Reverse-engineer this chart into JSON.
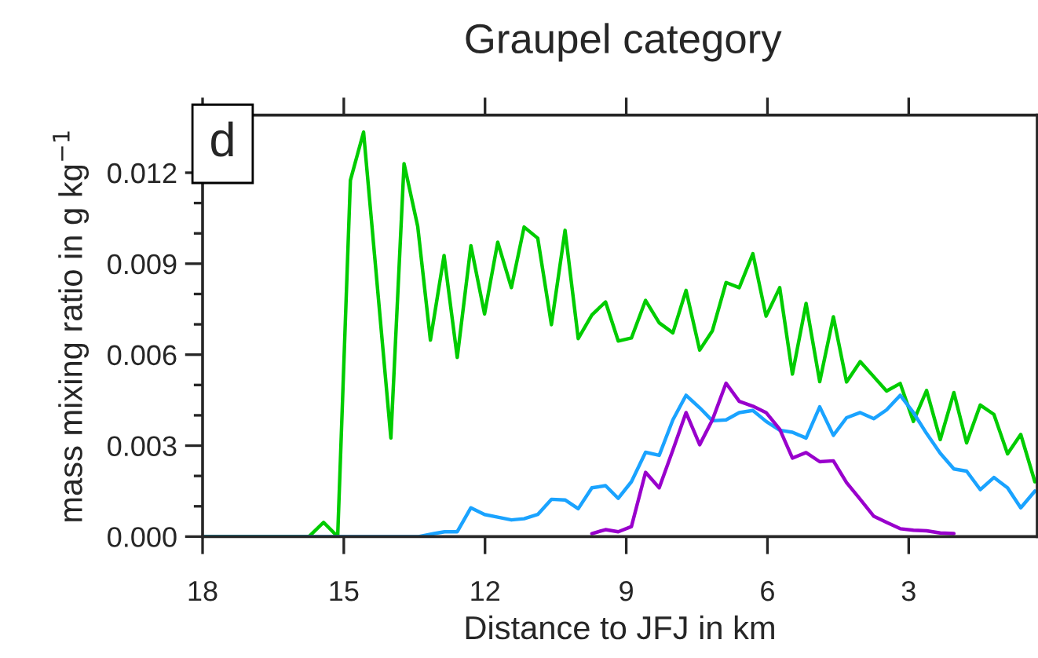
{
  "chart_data": {
    "type": "line",
    "title": "Graupel category",
    "xlabel": "Distance to JFJ in km",
    "ylabel": "mass mixing ratio in g kg$^{−1}$",
    "annotations": [
      "d"
    ],
    "xlim": [
      18,
      0.27
    ],
    "xticks": [
      18,
      15,
      12,
      9,
      6,
      3
    ],
    "ylim": [
      0,
      0.0139
    ],
    "yticks": [
      {
        "value": 0,
        "label": "0.000"
      },
      {
        "value": 0.003,
        "label": "0.003"
      },
      {
        "value": 0.006,
        "label": "0.006"
      },
      {
        "value": 0.009,
        "label": "0.009"
      },
      {
        "value": 0.012,
        "label": "0.012"
      }
    ],
    "grid": false,
    "series": [
      {
        "color": "#00cc00",
        "x": [
          18,
          15.74,
          15.43,
          15.13,
          14.86,
          14.58,
          14.0,
          13.72,
          13.43,
          13.16,
          12.87,
          12.59,
          12.3,
          12.01,
          11.73,
          11.44,
          11.17,
          10.88,
          10.59,
          10.3,
          10.02,
          9.73,
          9.44,
          9.17,
          8.89,
          8.59,
          8.3,
          8.01,
          7.73,
          7.44,
          7.17,
          6.88,
          6.6,
          6.31,
          6.03,
          5.74,
          5.47,
          5.18,
          4.89,
          4.6,
          4.32,
          4.03,
          3.74,
          3.47,
          3.18,
          2.9,
          2.62,
          2.33,
          2.04,
          1.77,
          1.48,
          1.19,
          0.9,
          0.62,
          0.32
        ],
        "values": [
          0,
          0,
          0.00047,
          0,
          0.01175,
          0.01334,
          0.00325,
          0.0123,
          0.01023,
          0.00648,
          0.00927,
          0.00591,
          0.00959,
          0.00734,
          0.00971,
          0.00821,
          0.01021,
          0.00984,
          0.00699,
          0.0101,
          0.00653,
          0.00731,
          0.00774,
          0.00645,
          0.00655,
          0.00779,
          0.00705,
          0.00672,
          0.00812,
          0.00615,
          0.00679,
          0.00838,
          0.00821,
          0.00933,
          0.00727,
          0.00821,
          0.00536,
          0.00769,
          0.00511,
          0.00725,
          0.0051,
          0.00577,
          0.00527,
          0.0048,
          0.00505,
          0.0038,
          0.00482,
          0.0032,
          0.00475,
          0.00309,
          0.00434,
          0.00403,
          0.00273,
          0.00337,
          0.00181
        ]
      },
      {
        "color": "#1aa3ff",
        "x": [
          18,
          13.41,
          13.08,
          12.86,
          12.59,
          12.3,
          12.01,
          11.73,
          11.44,
          11.17,
          10.88,
          10.59,
          10.3,
          10.02,
          9.73,
          9.44,
          9.17,
          8.89,
          8.59,
          8.3,
          8.01,
          7.73,
          7.44,
          7.17,
          6.88,
          6.6,
          6.31,
          6.03,
          5.74,
          5.47,
          5.18,
          4.89,
          4.6,
          4.32,
          4.03,
          3.74,
          3.47,
          3.18,
          2.9,
          2.62,
          2.33,
          2.04,
          1.77,
          1.48,
          1.19,
          0.9,
          0.62,
          0.32
        ],
        "values": [
          0,
          0,
          0.0001,
          0.00016,
          0.00016,
          0.00095,
          0.00073,
          0.00064,
          0.00055,
          0.00059,
          0.00073,
          0.00123,
          0.00121,
          0.00092,
          0.00161,
          0.00168,
          0.00126,
          0.00181,
          0.00278,
          0.00268,
          0.00385,
          0.00466,
          0.00425,
          0.00382,
          0.00385,
          0.00409,
          0.00416,
          0.0038,
          0.00351,
          0.00344,
          0.00325,
          0.00428,
          0.00334,
          0.00392,
          0.00409,
          0.00389,
          0.00418,
          0.00466,
          0.00409,
          0.0034,
          0.00275,
          0.00223,
          0.00216,
          0.00155,
          0.00195,
          0.00161,
          0.00095,
          0.0015
        ]
      },
      {
        "color": "#9900cc",
        "x": [
          9.73,
          9.44,
          9.17,
          8.89,
          8.59,
          8.3,
          8.01,
          7.73,
          7.44,
          7.17,
          6.88,
          6.6,
          6.31,
          6.03,
          5.74,
          5.47,
          5.18,
          4.89,
          4.6,
          4.32,
          4.03,
          3.74,
          3.47,
          3.18,
          2.9,
          2.62,
          2.33,
          2.04
        ],
        "values": [
          0.0001,
          0.00023,
          0.00016,
          0.00033,
          0.00212,
          0.00161,
          0.00285,
          0.00409,
          0.00303,
          0.00385,
          0.00506,
          0.00446,
          0.0043,
          0.00409,
          0.00354,
          0.00259,
          0.00277,
          0.00247,
          0.0025,
          0.00178,
          0.00123,
          0.00067,
          0.00047,
          0.00026,
          0.00021,
          0.00019,
          0.00012,
          0.0001
        ]
      }
    ]
  }
}
